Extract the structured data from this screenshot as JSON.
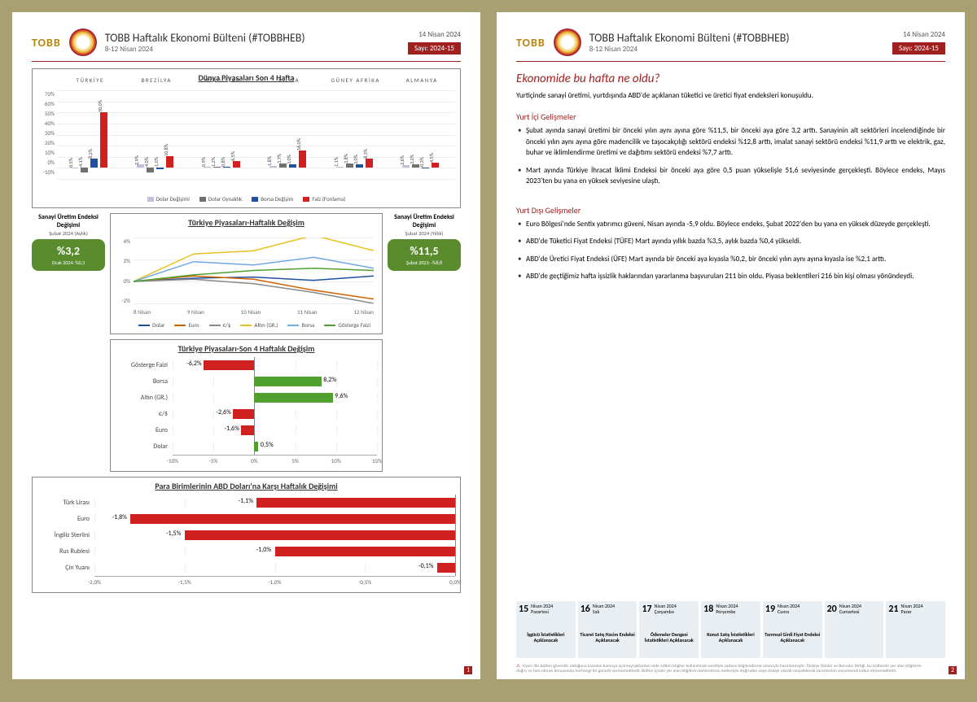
{
  "brand": "TOBB",
  "header": {
    "title": "TOBB Haftalık Ekonomi Bülteni (#TOBBHEB)",
    "range": "8-12 Nisan 2024",
    "date": "14 Nisan 2024",
    "issue": "Sayı: 2024-15"
  },
  "world_markets": {
    "title": "Dünya Piyasaları Son 4 Hafta",
    "yticks": [
      "70%",
      "60%",
      "50%",
      "40%",
      "30%",
      "20%",
      "10%",
      "0%",
      "-10%"
    ],
    "ylim": [
      -10,
      70
    ],
    "countries": [
      "TÜRKİYE",
      "BREZİLYA",
      "HİNDİSTAN",
      "RUSYA",
      "GÜNEY AFRİKA",
      "ALMANYA"
    ],
    "series": [
      {
        "name": "Dolar Değişimi",
        "color": "#c0c0dd"
      },
      {
        "name": "Dolar Oynaklık",
        "color": "#707070"
      },
      {
        "name": "Borsa Değişim",
        "color": "#2050a0"
      },
      {
        "name": "Faiz (Fonlama)",
        "color": "#d02020"
      }
    ],
    "data": [
      [
        "0,5",
        "-4,1",
        "8,2",
        "50,0"
      ],
      [
        "2,9",
        "-4,0",
        "-1,0",
        "10,8"
      ],
      [
        "0,9",
        "1,2",
        "0,8",
        "6,5"
      ],
      [
        "1,8",
        "3,7",
        "3,0",
        "16,0"
      ],
      [
        "1,1",
        "3,8",
        "3,0",
        "8,3"
      ],
      [
        "2,6",
        "3,2",
        "-0,3",
        "4,5"
      ]
    ],
    "values": [
      [
        0.5,
        -4.1,
        8.2,
        50.0
      ],
      [
        2.9,
        -4.0,
        -1.0,
        10.8
      ],
      [
        0.9,
        1.2,
        0.8,
        6.5
      ],
      [
        1.8,
        3.7,
        3.0,
        16.0
      ],
      [
        1.1,
        3.8,
        3.0,
        8.3
      ],
      [
        2.6,
        3.2,
        -0.3,
        4.5
      ]
    ]
  },
  "kpi_left": {
    "title": "Sanayi Üretim Endeksi Değişimi",
    "sub": "Şubat 2024 (Aylık)",
    "value": "%3,2",
    "prev": "Ocak 2024: %0,3"
  },
  "kpi_right": {
    "title": "Sanayi Üretim Endeksi Değişimi",
    "sub": "Şubat 2024 (Yıllık)",
    "value": "%11,5",
    "prev": "Şubat 2023: -%8,8"
  },
  "line_chart": {
    "title": "Türkiye Piyasaları-Haftalık Değişim",
    "yticks": [
      "4%",
      "2%",
      "0%",
      "-2%"
    ],
    "ylim": [
      -2,
      4
    ],
    "x": [
      "8 Nisan",
      "9 Nisan",
      "10 Nisan",
      "11 Nisan",
      "12 Nisan"
    ],
    "series": [
      {
        "name": "Dolar",
        "color": "#2050a0",
        "y": [
          0,
          0.3,
          0.4,
          0.1,
          0.5
        ]
      },
      {
        "name": "Euro",
        "color": "#d06000",
        "y": [
          0,
          0.5,
          0.2,
          -0.8,
          -1.6
        ]
      },
      {
        "name": "€/$",
        "color": "#888888",
        "y": [
          0,
          0.2,
          -0.2,
          -1.0,
          -2.0
        ]
      },
      {
        "name": "Altın (GR.)",
        "color": "#e8c020",
        "y": [
          0,
          2.5,
          2.8,
          4.2,
          2.8
        ]
      },
      {
        "name": "Borsa",
        "color": "#70a8e0",
        "y": [
          0,
          1.8,
          1.5,
          2.2,
          1.2
        ]
      },
      {
        "name": "Gösterge Faizi",
        "color": "#50a030",
        "y": [
          0,
          0.6,
          1.0,
          1.2,
          1.0
        ]
      }
    ]
  },
  "hbar4w": {
    "title": "Türkiye Piyasaları-Son 4 Haftalık Değişim",
    "xlim": [
      -10,
      15
    ],
    "xticks": [
      "-10%",
      "-5%",
      "0%",
      "5%",
      "10%",
      "15%"
    ],
    "rows": [
      {
        "label": "Gösterge Faizi",
        "val": -6.2,
        "txt": "-6,2%"
      },
      {
        "label": "Borsa",
        "val": 8.2,
        "txt": "8,2%"
      },
      {
        "label": "Altın (GR.)",
        "val": 9.6,
        "txt": "9,6%"
      },
      {
        "label": "€/$",
        "val": -2.6,
        "txt": "-2,6%"
      },
      {
        "label": "Euro",
        "val": -1.6,
        "txt": "-1,6%"
      },
      {
        "label": "Dolar",
        "val": 0.5,
        "txt": "0,5%"
      }
    ],
    "pos_color": "#50a030",
    "neg_color": "#d02020"
  },
  "hbarfx": {
    "title": "Para Birimlerinin ABD Doları'na Karşı Haftalık Değişimi",
    "xlim": [
      -2,
      0
    ],
    "xticks": [
      "-2,0%",
      "-1,5%",
      "-1,0%",
      "-0,5%",
      "0,0%"
    ],
    "color": "#d02020",
    "rows": [
      {
        "label": "Türk Lirası",
        "val": -1.1,
        "txt": "-1,1%"
      },
      {
        "label": "Euro",
        "val": -1.8,
        "txt": "-1,8%"
      },
      {
        "label": "İngiliz Sterlini",
        "val": -1.5,
        "txt": "-1,5%"
      },
      {
        "label": "Rus Rublesi",
        "val": -1.0,
        "txt": "-1,0%"
      },
      {
        "label": "Çin Yuanı",
        "val": -0.1,
        "txt": "-0,1%"
      }
    ]
  },
  "page2": {
    "title": "Ekonomide bu hafta ne oldu?",
    "lead": "Yurtiçinde sanayi üretimi, yurtdışında ABD'de açıklanan tüketici ve üretici fiyat endeksleri konuşuldu.",
    "dom_head": "Yurt İçi Gelişmeler",
    "dom": [
      "Şubat ayında sanayi üretimi bir önceki yılın aynı ayına göre %11,5, bir önceki aya göre 3,2 arttı. Sanayinin alt sektörleri incelendiğinde bir önceki yılın aynı ayına göre madencilik ve taşocakçılığı sektörü endeksi %12,8 arttı, imalat sanayi sektörü endeksi %11,9 arttı ve elektrik, gaz, buhar ve iklimlendirme üretimi ve dağıtımı sektörü endeksi %7,7 arttı.",
      "Mart ayında Türkiye İhracat İklimi Endeksi bir önceki aya göre 0,5 puan yükselişle 51,6 seviyesinde gerçekleşti. Böylece endeks, Mayıs 2023'ten bu yana en yüksek seviyesine ulaştı."
    ],
    "intl_head": "Yurt Dışı Gelişmeler",
    "intl": [
      "Euro Bölgesi'nde Sentix yatırımcı güveni, Nisan ayında -5,9 oldu. Böylece endeks, Şubat 2022'den bu yana en yüksek düzeyde gerçekleşti.",
      "ABD'de Tüketici Fiyat Endeksi (TÜFE) Mart ayında yıllık bazda %3,5, aylık bazda %0,4 yükseldi.",
      "ABD'de Üretici Fiyat Endeksi (ÜFE) Mart ayında bir önceki aya kıyasla %0,2, bir önceki yılın aynı ayına kıyasla ise %2,1 arttı.",
      "ABD'de geçtiğimiz hafta işsizlik haklarından yararlanma başvuruları 211 bin oldu. Piyasa beklentileri 216 bin kişi olması yönündeydi."
    ],
    "calendar": [
      {
        "d": "15",
        "date": "Nisan 2024",
        "dow": "Pazartesi",
        "ev": "İşgücü İstatistikleri Açıklanacak"
      },
      {
        "d": "16",
        "date": "Nisan 2024",
        "dow": "Salı",
        "ev": "Ticaret Satış Hacim Endeksi Açıklanacak"
      },
      {
        "d": "17",
        "date": "Nisan 2024",
        "dow": "Çarşamba",
        "ev": "Ödemeler Dengesi İstatistikleri Açıklanacak"
      },
      {
        "d": "18",
        "date": "Nisan 2024",
        "dow": "Perşembe",
        "ev": "Konut Satış İstatistikleri Açıklanacak"
      },
      {
        "d": "19",
        "date": "Nisan 2024",
        "dow": "Cuma",
        "ev": "Tarımsal Girdi Fiyat Endeksi Açıklanacak"
      },
      {
        "d": "20",
        "date": "Nisan 2024",
        "dow": "Cumartesi",
        "ev": ""
      },
      {
        "d": "21",
        "date": "Nisan 2024",
        "dow": "Pazar",
        "ev": ""
      }
    ],
    "disclaimer": "Uyarı: Bu bülten güvenilir olduğuna inanılan kamuya açık kaynaklardan elde edilen bilgiler kullanılmak suretiyle sadece bilgilendirme amacıyla hazırlanmıştır. Türkiye Odalar ve Borsalar Birliği, bu bültende yer alan bilgilerin doğru ve tam olması konusunda herhangi bir garanti vermemektedir. Bülten içinde yer alan bilgilerin kullanılması nedeniyle doğrudan veya dolaylı olarak oluşabilecek zararlardan sorumluluk kabul etmemektedir."
  },
  "page_numbers": [
    "1",
    "2"
  ]
}
